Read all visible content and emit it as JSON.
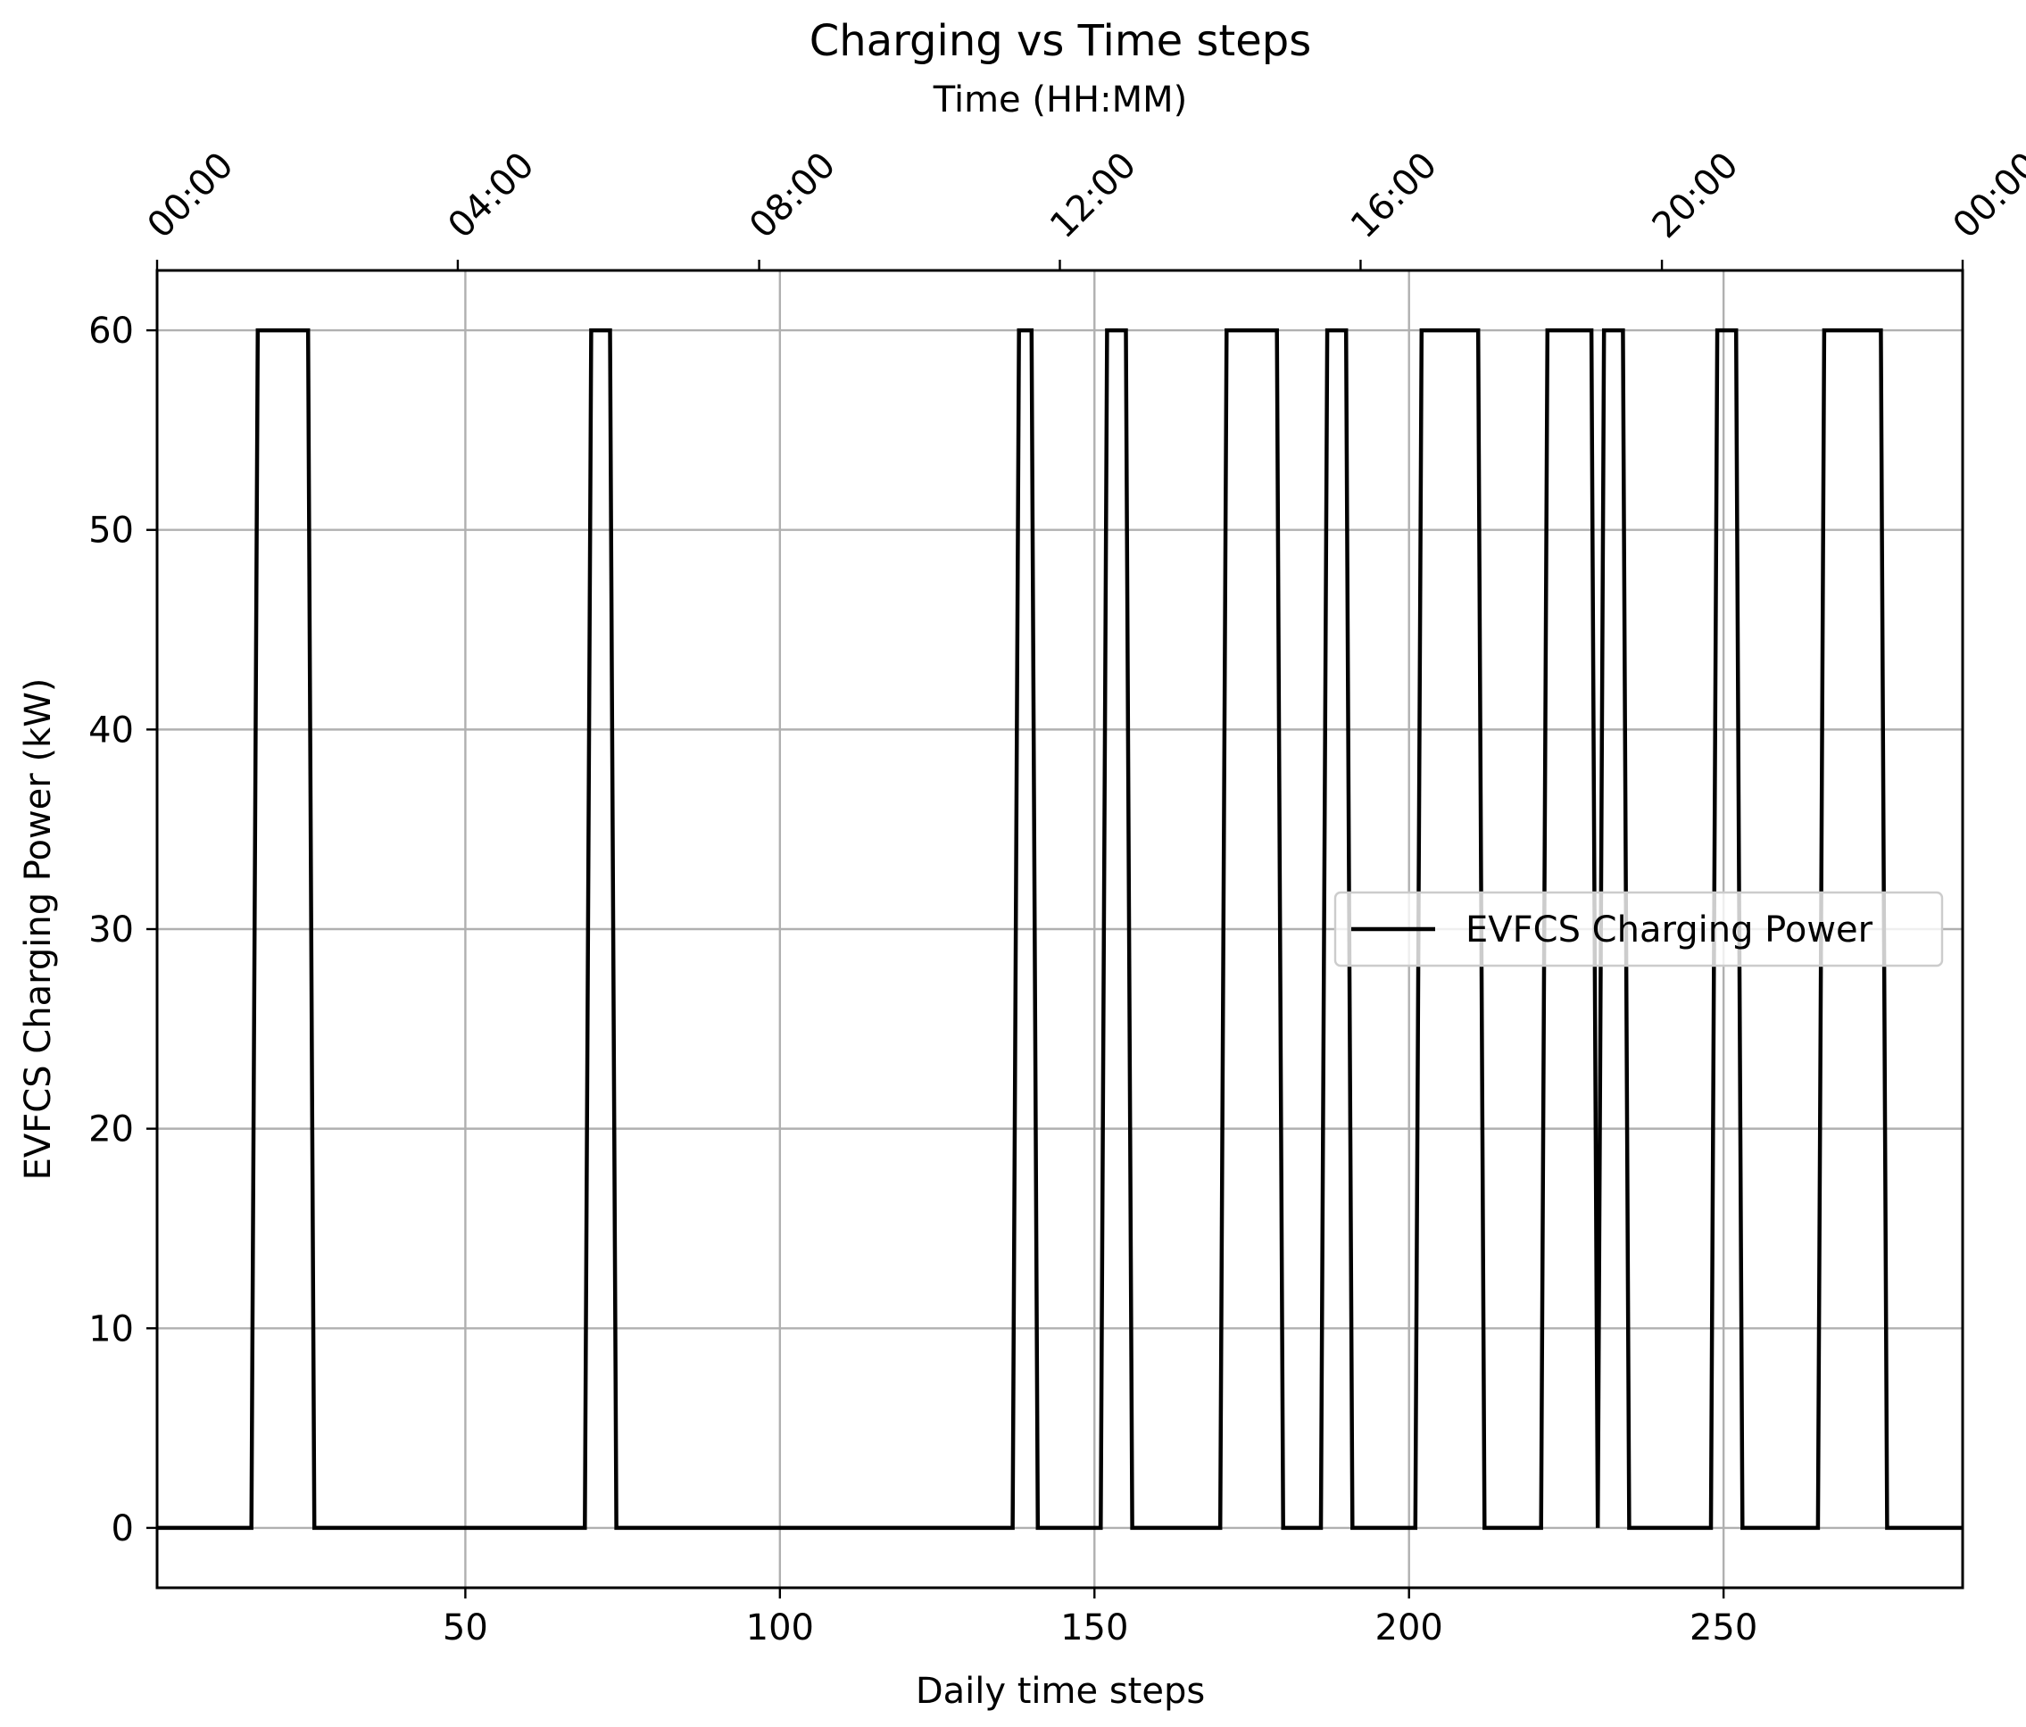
{
  "chart_data": {
    "type": "line",
    "title": "Charging vs Time steps",
    "xlabel": "Daily time steps",
    "ylabel": "EVFCS Charging Power (kW)",
    "top_xlabel": "Time (HH:MM)",
    "xlim": [
      1,
      288
    ],
    "ylim": [
      -3,
      63
    ],
    "xticks": [
      50,
      100,
      150,
      200,
      250
    ],
    "xtick_labels": [
      "50",
      "100",
      "150",
      "200",
      "250"
    ],
    "yticks": [
      0,
      10,
      20,
      30,
      40,
      50,
      60
    ],
    "ytick_labels": [
      "0",
      "10",
      "20",
      "30",
      "40",
      "50",
      "60"
    ],
    "top_ticks": [
      1,
      48.8,
      96.7,
      144.5,
      192.3,
      240.2,
      288
    ],
    "top_tick_labels": [
      "00:00",
      "04:00",
      "08:00",
      "12:00",
      "16:00",
      "20:00",
      "00:00"
    ],
    "grid": true,
    "legend_position": "center-right",
    "series": [
      {
        "name": "EVFCS Charging Power",
        "color": "#000000",
        "x": [
          1,
          16,
          17,
          25,
          26,
          69,
          70,
          73,
          74,
          137,
          138,
          140,
          141,
          151,
          152,
          155,
          156,
          170,
          171,
          179,
          180,
          186,
          187,
          190,
          191,
          201,
          202,
          211,
          212,
          221,
          222,
          229,
          230,
          231,
          234,
          235,
          248,
          249,
          252,
          253,
          265,
          266,
          275,
          276,
          288
        ],
        "y": [
          0,
          0,
          60,
          60,
          0,
          0,
          60,
          60,
          0,
          0,
          60,
          60,
          0,
          0,
          60,
          60,
          0,
          0,
          60,
          60,
          0,
          0,
          60,
          60,
          0,
          0,
          60,
          60,
          0,
          0,
          60,
          60,
          0,
          60,
          60,
          0,
          0,
          60,
          60,
          0,
          0,
          60,
          60,
          0,
          0
        ]
      }
    ]
  }
}
